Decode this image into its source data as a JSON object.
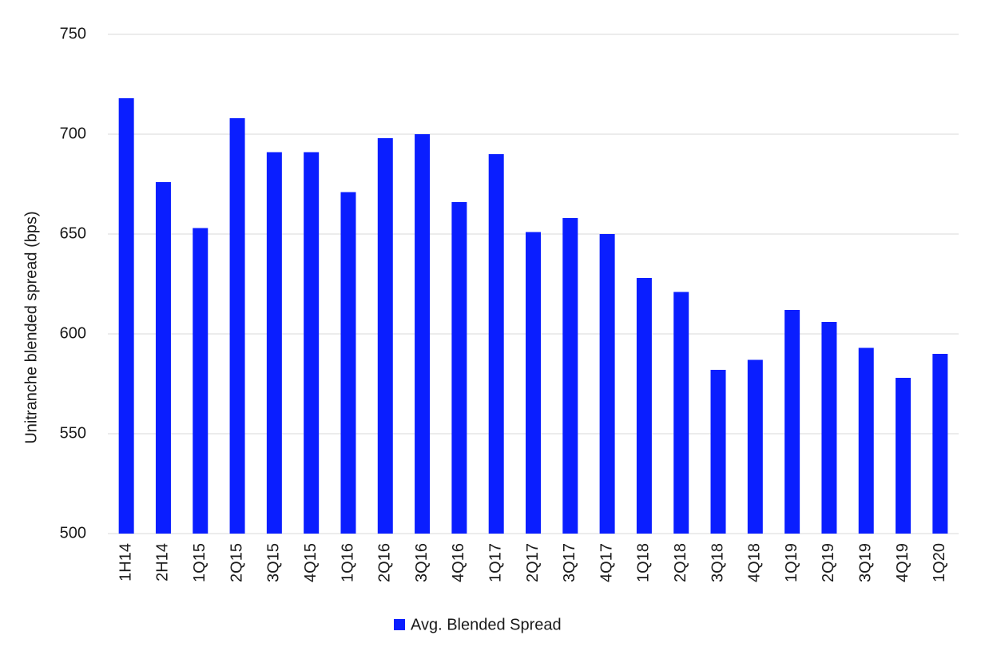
{
  "chart_data": {
    "type": "bar",
    "y_label": "Unitranche blended spread (bps)",
    "categories": [
      "1H14",
      "2H14",
      "1Q15",
      "2Q15",
      "3Q15",
      "4Q15",
      "1Q16",
      "2Q16",
      "3Q16",
      "4Q16",
      "1Q17",
      "2Q17",
      "3Q17",
      "4Q17",
      "1Q18",
      "2Q18",
      "3Q18",
      "4Q18",
      "1Q19",
      "2Q19",
      "3Q19",
      "4Q19",
      "1Q20"
    ],
    "series": [
      {
        "name": "Avg. Blended Spread",
        "color": "#0a1eff",
        "values": [
          718,
          676,
          653,
          708,
          691,
          691,
          671,
          698,
          700,
          666,
          690,
          651,
          658,
          650,
          628,
          621,
          582,
          587,
          612,
          606,
          593,
          578,
          590
        ]
      }
    ],
    "ylim": [
      500,
      750
    ],
    "yticks": [
      500,
      550,
      600,
      650,
      700,
      750
    ],
    "grid": true,
    "legend": "bottom"
  }
}
